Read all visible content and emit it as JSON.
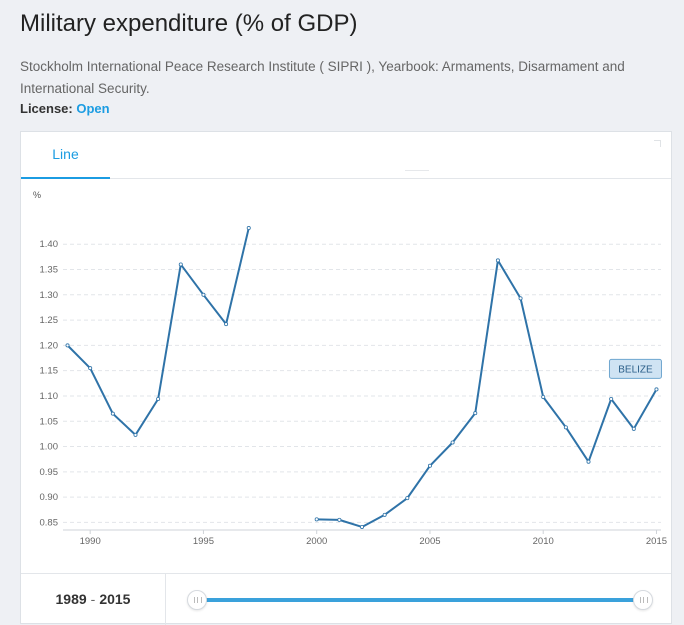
{
  "page": {
    "title": "Military expenditure (% of GDP)",
    "source": "Stockholm International Peace Research Institute ( SIPRI ), Yearbook: Armaments, Disarmament and International Security.",
    "license_label": "License:",
    "license_value": "Open"
  },
  "tabs": [
    {
      "label": "Line",
      "active": true
    }
  ],
  "range": {
    "start": "1989",
    "separator": "-",
    "end": "2015",
    "min_year": 1989,
    "max_year": 2015
  },
  "colors": {
    "accent": "#1b9ce2",
    "line": "#2f73a8",
    "tag_bg": "#cfe3f3",
    "tag_border": "#6fa6cf"
  },
  "chart_data": {
    "type": "line",
    "ylabel": "%",
    "xlim": [
      1988.8,
      2015.2
    ],
    "ylim": [
      0.835,
      1.44
    ],
    "yticks": [
      0.85,
      0.9,
      0.95,
      1.0,
      1.05,
      1.1,
      1.15,
      1.2,
      1.25,
      1.3,
      1.35,
      1.4
    ],
    "xticks": [
      1990,
      1995,
      2000,
      2005,
      2010,
      2015
    ],
    "grid": "horizontal-dashed",
    "series": [
      {
        "name": "BELIZE",
        "x": [
          1989,
          1990,
          1991,
          1992,
          1993,
          1994,
          1995,
          1996,
          1997,
          1998,
          1999,
          2000,
          2001,
          2002,
          2003,
          2004,
          2005,
          2006,
          2007,
          2008,
          2009,
          2010,
          2011,
          2012,
          2013,
          2014,
          2015
        ],
        "y": [
          1.2,
          1.155,
          1.065,
          1.023,
          1.094,
          1.36,
          1.3,
          1.242,
          1.432,
          null,
          null,
          0.856,
          0.855,
          0.841,
          0.865,
          0.898,
          0.962,
          1.008,
          1.066,
          1.368,
          1.293,
          1.098,
          1.038,
          0.97,
          1.094,
          1.035,
          1.113
        ]
      }
    ]
  }
}
